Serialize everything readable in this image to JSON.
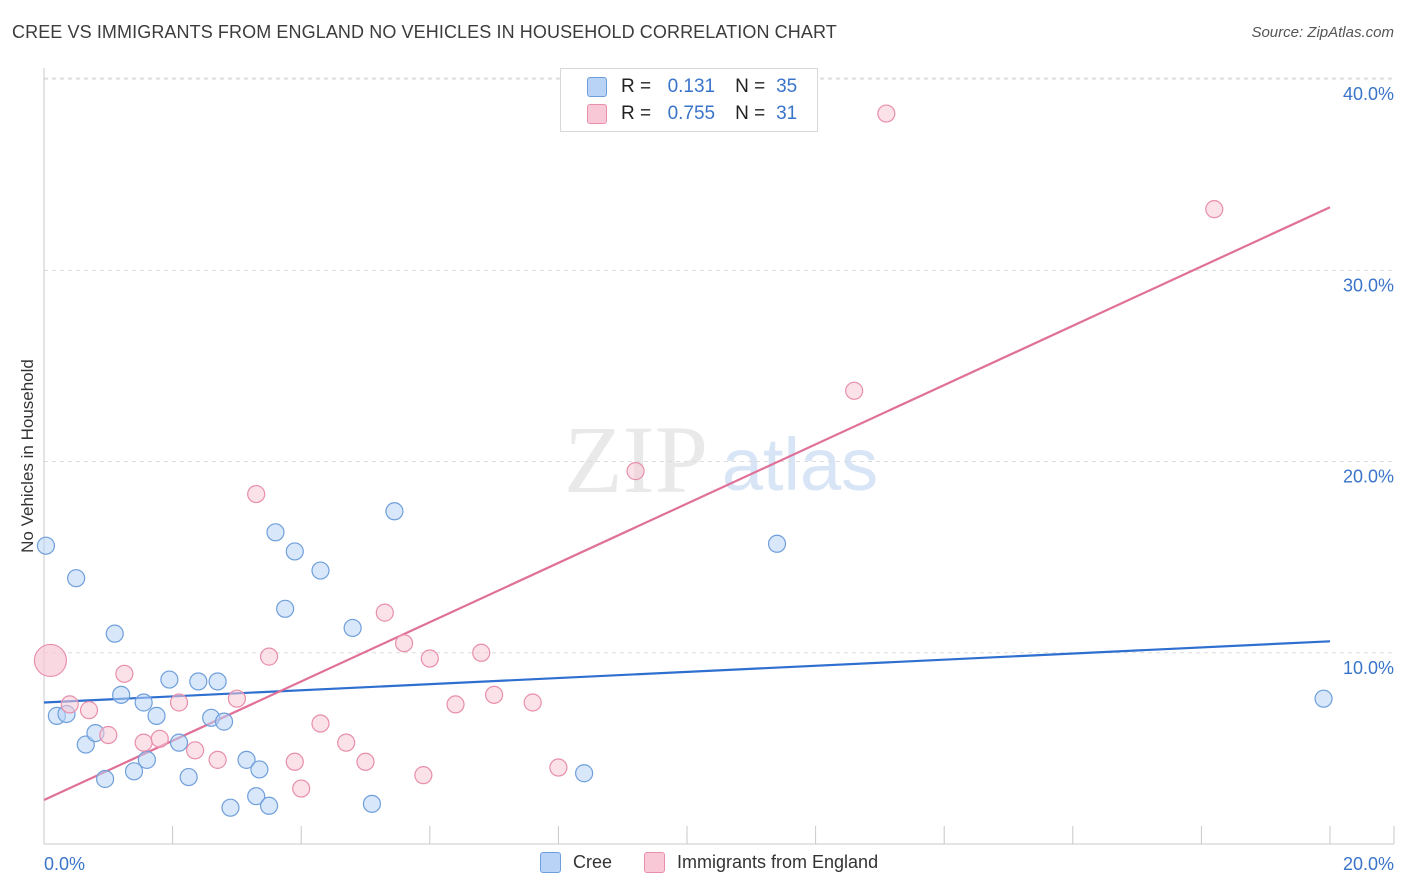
{
  "title": "CREE VS IMMIGRANTS FROM ENGLAND NO VEHICLES IN HOUSEHOLD CORRELATION CHART",
  "source": "Source: ZipAtlas.com",
  "watermark": {
    "zip": "ZIP",
    "atlas": "atlas"
  },
  "legend": {
    "r_label": "R =",
    "n_label": "N =",
    "cree": {
      "r": "0.131",
      "n": "35"
    },
    "england": {
      "r": "0.755",
      "n": "31"
    }
  },
  "colors": {
    "cree_fill": "#b8d3f5",
    "cree_stroke": "#6f9fdb",
    "cree_line": "#2f6fd0",
    "england_fill": "#f8c8d6",
    "england_stroke": "#e88fab",
    "england_line": "#e07098",
    "tick_text": "#3a74c9",
    "grid": "#dcdcdc"
  },
  "chart_data": {
    "type": "scatter",
    "title": "CREE VS IMMIGRANTS FROM ENGLAND NO VEHICLES IN HOUSEHOLD CORRELATION CHART",
    "xlabel": "",
    "ylabel": "No Vehicles in Household",
    "xlim": [
      0,
      20
    ],
    "ylim": [
      0,
      41
    ],
    "x_tick_labels": [
      "0.0%",
      "20.0%"
    ],
    "y_ticks": [
      {
        "value": 10,
        "label": "10.0%"
      },
      {
        "value": 20,
        "label": "20.0%"
      },
      {
        "value": 30,
        "label": "30.0%"
      },
      {
        "value": 40,
        "label": "40.0%"
      }
    ],
    "series": [
      {
        "name": "Cree",
        "key": "cree",
        "trend": {
          "x": [
            0,
            20
          ],
          "y": [
            7.4,
            10.6
          ]
        },
        "points": [
          {
            "x": 0.03,
            "y": 15.6
          },
          {
            "x": 0.2,
            "y": 6.7
          },
          {
            "x": 0.35,
            "y": 6.8
          },
          {
            "x": 0.5,
            "y": 13.9
          },
          {
            "x": 0.65,
            "y": 5.2
          },
          {
            "x": 0.8,
            "y": 5.8
          },
          {
            "x": 0.95,
            "y": 3.4
          },
          {
            "x": 1.1,
            "y": 11.0
          },
          {
            "x": 1.2,
            "y": 7.8
          },
          {
            "x": 1.4,
            "y": 3.8
          },
          {
            "x": 1.55,
            "y": 7.4
          },
          {
            "x": 1.6,
            "y": 4.4
          },
          {
            "x": 1.75,
            "y": 6.7
          },
          {
            "x": 1.95,
            "y": 8.6
          },
          {
            "x": 2.1,
            "y": 5.3
          },
          {
            "x": 2.25,
            "y": 3.5
          },
          {
            "x": 2.4,
            "y": 8.5
          },
          {
            "x": 2.6,
            "y": 6.6
          },
          {
            "x": 2.7,
            "y": 8.5
          },
          {
            "x": 2.8,
            "y": 6.4
          },
          {
            "x": 2.9,
            "y": 1.9
          },
          {
            "x": 3.15,
            "y": 4.4
          },
          {
            "x": 3.3,
            "y": 2.5
          },
          {
            "x": 3.35,
            "y": 3.9
          },
          {
            "x": 3.5,
            "y": 2.0
          },
          {
            "x": 3.6,
            "y": 16.3
          },
          {
            "x": 3.75,
            "y": 12.3
          },
          {
            "x": 3.9,
            "y": 15.3
          },
          {
            "x": 4.3,
            "y": 14.3
          },
          {
            "x": 4.8,
            "y": 11.3
          },
          {
            "x": 5.1,
            "y": 2.1
          },
          {
            "x": 5.45,
            "y": 17.4
          },
          {
            "x": 8.4,
            "y": 3.7
          },
          {
            "x": 11.4,
            "y": 15.7
          },
          {
            "x": 19.9,
            "y": 7.6
          }
        ]
      },
      {
        "name": "Immigrants from England",
        "key": "england",
        "trend": {
          "x": [
            0,
            20
          ],
          "y": [
            2.3,
            33.3
          ]
        },
        "points": [
          {
            "x": 0.1,
            "y": 9.6,
            "big": true
          },
          {
            "x": 0.4,
            "y": 7.3
          },
          {
            "x": 0.7,
            "y": 7.0
          },
          {
            "x": 1.0,
            "y": 5.7
          },
          {
            "x": 1.25,
            "y": 8.9
          },
          {
            "x": 1.55,
            "y": 5.3
          },
          {
            "x": 1.8,
            "y": 5.5
          },
          {
            "x": 2.1,
            "y": 7.4
          },
          {
            "x": 2.35,
            "y": 4.9
          },
          {
            "x": 2.7,
            "y": 4.4
          },
          {
            "x": 3.0,
            "y": 7.6
          },
          {
            "x": 3.3,
            "y": 18.3
          },
          {
            "x": 3.5,
            "y": 9.8
          },
          {
            "x": 3.9,
            "y": 4.3
          },
          {
            "x": 4.0,
            "y": 2.9
          },
          {
            "x": 4.3,
            "y": 6.3
          },
          {
            "x": 4.7,
            "y": 5.3
          },
          {
            "x": 5.0,
            "y": 4.3
          },
          {
            "x": 5.3,
            "y": 12.1
          },
          {
            "x": 5.6,
            "y": 10.5
          },
          {
            "x": 5.9,
            "y": 3.6
          },
          {
            "x": 6.0,
            "y": 9.7
          },
          {
            "x": 6.4,
            "y": 7.3
          },
          {
            "x": 6.8,
            "y": 10.0
          },
          {
            "x": 7.0,
            "y": 7.8
          },
          {
            "x": 7.6,
            "y": 7.4
          },
          {
            "x": 8.0,
            "y": 4.0
          },
          {
            "x": 9.2,
            "y": 19.5
          },
          {
            "x": 12.6,
            "y": 23.7
          },
          {
            "x": 13.1,
            "y": 38.2
          },
          {
            "x": 18.2,
            "y": 33.2
          }
        ]
      }
    ],
    "legend_position": "top-center"
  }
}
